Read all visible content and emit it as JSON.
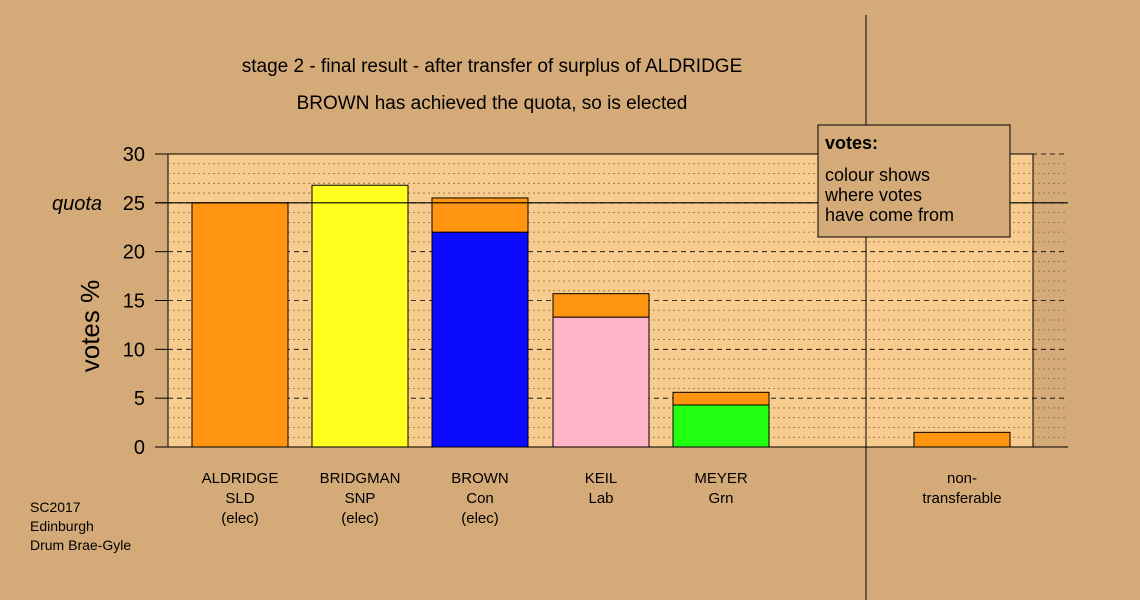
{
  "colors": {
    "background": "#d4aa78",
    "plot_area": "#f8cc8e",
    "aldridge": "#ff9410",
    "bridgman": "#ffff20",
    "brown": "#0a0aff",
    "keil": "#ffb4c8",
    "meyer": "#22ff10"
  },
  "chart_data": {
    "type": "bar",
    "stacked": true,
    "title": "stage 2 - final result - after transfer of surplus of ALDRIDGE",
    "subtitle": "BROWN has achieved the quota, so is elected",
    "ylabel": "votes %",
    "ylim": [
      0,
      30
    ],
    "yticks": [
      "0",
      "5",
      "10",
      "15",
      "20",
      "25",
      "30"
    ],
    "quota": {
      "value": 25,
      "label": "quota"
    },
    "grid": true,
    "categories": [
      {
        "lines": [
          "ALDRIDGE",
          "SLD",
          "(elec)"
        ]
      },
      {
        "lines": [
          "BRIDGMAN",
          "SNP",
          "(elec)"
        ]
      },
      {
        "lines": [
          "BROWN",
          "Con",
          "(elec)"
        ]
      },
      {
        "lines": [
          "KEIL",
          "Lab"
        ]
      },
      {
        "lines": [
          "MEYER",
          "Grn"
        ]
      },
      {
        "lines": [
          "non-",
          "transferable"
        ]
      }
    ],
    "bars": [
      {
        "segments": [
          {
            "from": "aldridge",
            "value": 25.0
          }
        ]
      },
      {
        "segments": [
          {
            "from": "bridgman",
            "value": 26.8
          }
        ]
      },
      {
        "segments": [
          {
            "from": "brown",
            "value": 22.0
          },
          {
            "from": "aldridge",
            "value": 3.5
          }
        ]
      },
      {
        "segments": [
          {
            "from": "keil",
            "value": 13.3
          },
          {
            "from": "aldridge",
            "value": 2.4
          }
        ]
      },
      {
        "segments": [
          {
            "from": "meyer",
            "value": 4.3
          },
          {
            "from": "aldridge",
            "value": 1.3
          }
        ]
      },
      {
        "segments": [
          {
            "from": "aldridge",
            "value": 1.5
          }
        ]
      }
    ],
    "legend": {
      "position": "top-right",
      "title": "votes:",
      "lines": [
        "colour shows",
        "where votes",
        "have come from"
      ]
    }
  },
  "footer": {
    "lines": [
      "SC2017",
      "Edinburgh",
      "Drum Brae-Gyle"
    ]
  }
}
